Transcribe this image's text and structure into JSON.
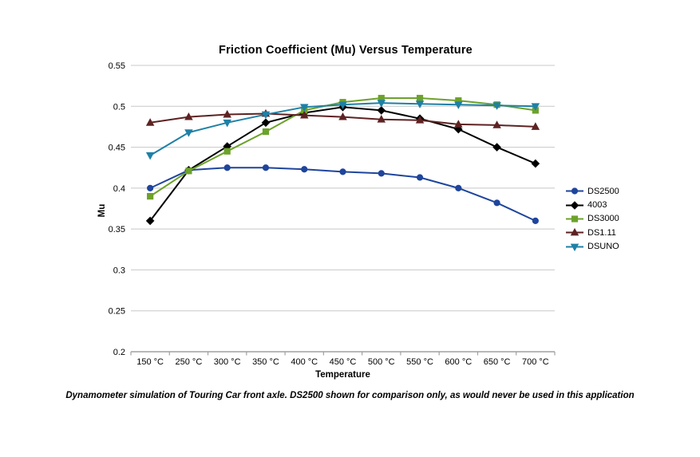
{
  "footer": {
    "note": "Dynamometer simulation of Touring Car front axle. DS2500 shown for comparison only, as would never be used in this application"
  },
  "chart_data": {
    "type": "line",
    "title": "Friction Coefficient (Mu) Versus Temperature",
    "xlabel": "Temperature",
    "ylabel": "Mu",
    "ylim": [
      0.2,
      0.55
    ],
    "ytick_step": 0.05,
    "grid": true,
    "legend_position": "right",
    "categories": [
      "150 °C",
      "250 °C",
      "300 °C",
      "350 °C",
      "400 °C",
      "450 °C",
      "500 °C",
      "550 °C",
      "600 °C",
      "650 °C",
      "700 °C"
    ],
    "series": [
      {
        "name": "DS2500",
        "color": "#1F459C",
        "marker": "circle",
        "values": [
          0.4,
          0.422,
          0.425,
          0.425,
          0.423,
          0.42,
          0.418,
          0.413,
          0.4,
          0.382,
          0.36
        ]
      },
      {
        "name": "4003",
        "color": "#000000",
        "marker": "diamond",
        "values": [
          0.36,
          0.422,
          0.451,
          0.48,
          0.492,
          0.499,
          0.495,
          0.485,
          0.472,
          0.45,
          0.43
        ]
      },
      {
        "name": "DS3000",
        "color": "#6DA22B",
        "marker": "square",
        "values": [
          0.39,
          0.421,
          0.445,
          0.469,
          0.495,
          0.505,
          0.51,
          0.51,
          0.507,
          0.502,
          0.495
        ]
      },
      {
        "name": "DS1.11",
        "color": "#5E2222",
        "marker": "triangle-up",
        "values": [
          0.48,
          0.487,
          0.49,
          0.491,
          0.489,
          0.487,
          0.484,
          0.483,
          0.478,
          0.477,
          0.475
        ]
      },
      {
        "name": "DSUNO",
        "color": "#1F80A6",
        "marker": "triangle-down",
        "values": [
          0.44,
          0.468,
          0.48,
          0.49,
          0.499,
          0.502,
          0.504,
          0.503,
          0.502,
          0.501,
          0.5
        ]
      }
    ],
    "colors": {
      "gridline": "#C8C8C8",
      "axis": "#A0A0A0",
      "text": "#000000",
      "background": "#FFFFFF"
    }
  }
}
